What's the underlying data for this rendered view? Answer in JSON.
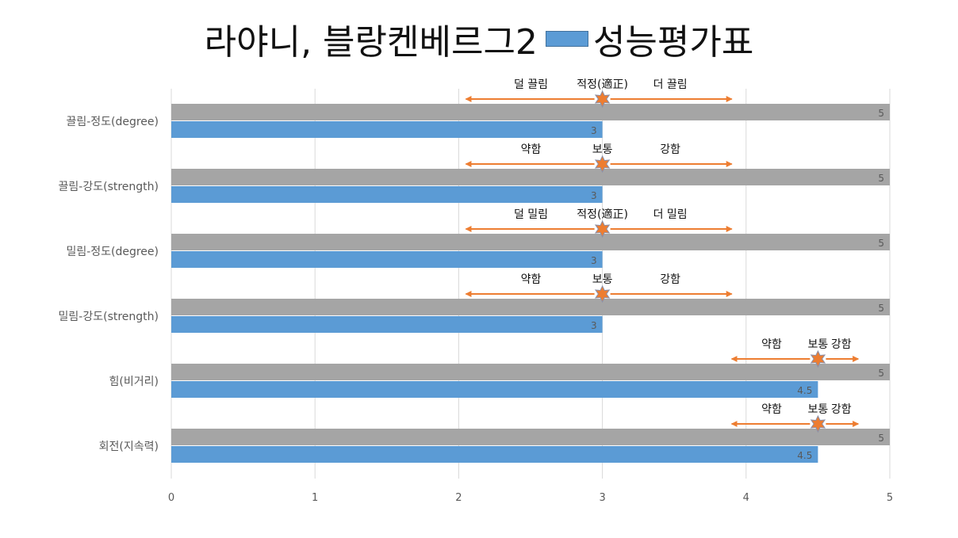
{
  "title": {
    "main": "라야니, 블랑켄베르그2",
    "legend": "성능평가표"
  },
  "colors": {
    "max_bar": "#a5a5a5",
    "value_bar": "#5b9bd5",
    "arrow": "#ed7d31",
    "star": "#ed7d31",
    "grid": "#d9d9d9"
  },
  "chart_data": {
    "type": "bar",
    "orientation": "horizontal",
    "xlim": [
      0,
      5
    ],
    "xticks": [
      0,
      1,
      2,
      3,
      4,
      5
    ],
    "grid": true,
    "categories": [
      "끌림-정도(degree)",
      "끌림-강도(strength)",
      "밀림-정도(degree)",
      "밀림-강도(strength)",
      "힘(비거리)",
      "회전(지속력)"
    ],
    "max_values": [
      5,
      5,
      5,
      5,
      5,
      5
    ],
    "max_labels": [
      "5",
      "5",
      "5",
      "5",
      "5",
      "5"
    ],
    "values": [
      3,
      3,
      3,
      3,
      4.5,
      4.5
    ],
    "value_labels": [
      "3",
      "3",
      "3",
      "3",
      "4.5",
      "4.5"
    ],
    "annotations": [
      {
        "left": "덜 끌림",
        "center": "적정(適正)",
        "right": "더 끌림",
        "range": [
          2.05,
          3.9
        ],
        "marker": 3
      },
      {
        "left": "약함",
        "center": "보통",
        "right": "강함",
        "range": [
          2.05,
          3.9
        ],
        "marker": 3
      },
      {
        "left": "덜 밀림",
        "center": "적정(適正)",
        "right": "더 밀림",
        "range": [
          2.05,
          3.9
        ],
        "marker": 3
      },
      {
        "left": "약함",
        "center": "보통",
        "right": "강함",
        "range": [
          2.05,
          3.9
        ],
        "marker": 3
      },
      {
        "left": "약함",
        "center": "보통",
        "right": "강함",
        "range": [
          3.9,
          4.78
        ],
        "marker": 4.5
      },
      {
        "left": "약함",
        "center": "보통",
        "right": "강함",
        "range": [
          3.9,
          4.78
        ],
        "marker": 4.5
      }
    ]
  }
}
